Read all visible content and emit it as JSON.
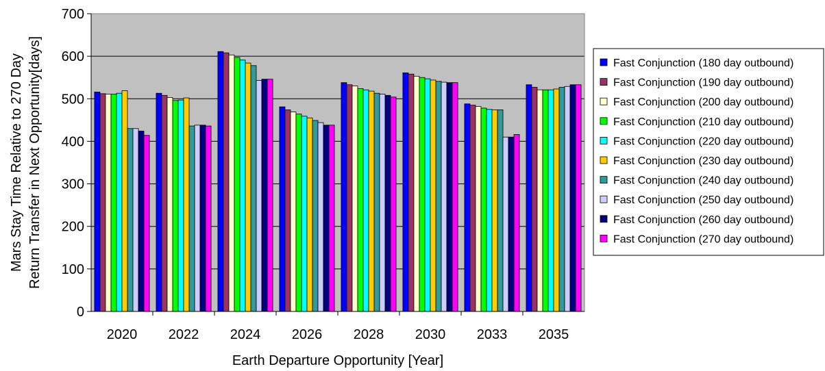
{
  "chart_data": {
    "type": "bar",
    "xlabel": "Earth Departure Opportunity [Year]",
    "ylabel_lines": [
      "Mars Stay Time Relative to 270 Day",
      "Return Transfer in Next Opportunity[days]"
    ],
    "ylim": [
      0,
      700
    ],
    "yticks": [
      0,
      100,
      200,
      300,
      400,
      500,
      600,
      700
    ],
    "grid": true,
    "plot_background": "#c0c0c0",
    "legend_position": "right",
    "categories": [
      "2020",
      "2022",
      "2024",
      "2026",
      "2028",
      "2030",
      "2033",
      "2035"
    ],
    "series": [
      {
        "name": "Fast Conjunction (180 day outbound)",
        "color": "#0000ff",
        "values": [
          516,
          513,
          611,
          481,
          538,
          561,
          488,
          533
        ]
      },
      {
        "name": "Fast Conjunction (190 day outbound)",
        "color": "#993366",
        "values": [
          512,
          508,
          608,
          474,
          533,
          558,
          485,
          527
        ]
      },
      {
        "name": "Fast Conjunction (200 day outbound)",
        "color": "#ffffcc",
        "values": [
          511,
          503,
          603,
          469,
          530,
          553,
          482,
          521
        ]
      },
      {
        "name": "Fast Conjunction (210 day outbound)",
        "color": "#00ff00",
        "values": [
          511,
          496,
          597,
          464,
          524,
          550,
          478,
          521
        ]
      },
      {
        "name": "Fast Conjunction (220 day outbound)",
        "color": "#00ffff",
        "values": [
          513,
          497,
          591,
          459,
          521,
          547,
          475,
          521
        ]
      },
      {
        "name": "Fast Conjunction (230 day outbound)",
        "color": "#ffcc00",
        "values": [
          519,
          502,
          584,
          455,
          518,
          544,
          474,
          523
        ]
      },
      {
        "name": "Fast Conjunction (240 day outbound)",
        "color": "#339999",
        "values": [
          430,
          436,
          578,
          449,
          513,
          541,
          474,
          527
        ]
      },
      {
        "name": "Fast Conjunction (250 day outbound)",
        "color": "#ccccff",
        "values": [
          430,
          438,
          543,
          444,
          511,
          539,
          410,
          529
        ]
      },
      {
        "name": "Fast Conjunction (260 day outbound)",
        "color": "#000080",
        "values": [
          424,
          438,
          546,
          438,
          508,
          538,
          410,
          533
        ]
      },
      {
        "name": "Fast Conjunction (270 day outbound)",
        "color": "#ff00ff",
        "values": [
          414,
          436,
          546,
          438,
          504,
          538,
          416,
          533
        ]
      }
    ]
  }
}
